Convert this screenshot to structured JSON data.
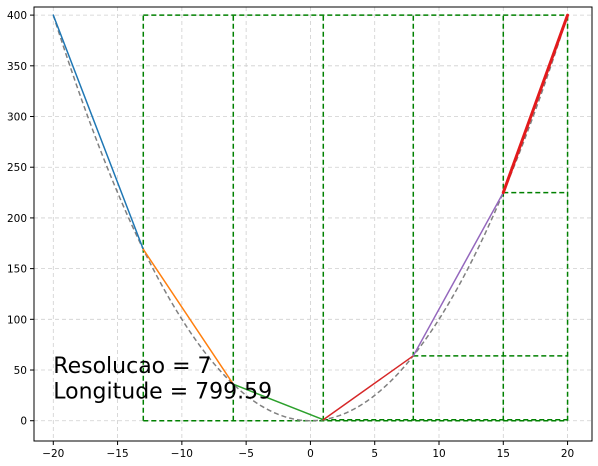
{
  "chart_data": {
    "type": "line",
    "title": "",
    "xlabel": "",
    "ylabel": "",
    "xlim": [
      -21.5,
      21.9
    ],
    "ylim": [
      -20,
      408
    ],
    "xticks": [
      -20,
      -15,
      -10,
      -5,
      0,
      5,
      10,
      15,
      20
    ],
    "yticks": [
      0,
      50,
      100,
      150,
      200,
      250,
      300,
      350,
      400
    ],
    "grid": true,
    "curve": {
      "name": "",
      "style": "dashed",
      "color": "#808080",
      "function": "y = x^2",
      "x_range": [
        -20,
        20
      ]
    },
    "segments": [
      {
        "color": "#1f77b4",
        "x": [
          -20,
          -13
        ],
        "y": [
          400,
          169
        ]
      },
      {
        "color": "#ff7f0e",
        "x": [
          -13,
          -6
        ],
        "y": [
          169,
          36
        ]
      },
      {
        "color": "#2ca02c",
        "x": [
          -6,
          1
        ],
        "y": [
          36,
          1
        ]
      },
      {
        "color": "#d62728",
        "x": [
          1,
          8
        ],
        "y": [
          1,
          64
        ]
      },
      {
        "color": "#9467bd",
        "x": [
          8,
          15
        ],
        "y": [
          64,
          225
        ]
      },
      {
        "color": "#e31a1c",
        "x": [
          15,
          20
        ],
        "y": [
          225,
          400
        ],
        "bold": true
      }
    ],
    "guides": {
      "color": "#008000",
      "style": "dashed",
      "vertical_x": [
        -13,
        -6,
        1,
        8,
        15,
        20
      ],
      "vertical_span": [
        0,
        400
      ],
      "horizontal": [
        {
          "y": 400,
          "x": [
            -13,
            20
          ]
        },
        {
          "y": 0,
          "x": [
            -13,
            20
          ]
        },
        {
          "y": 1,
          "x": [
            1,
            20
          ]
        },
        {
          "y": 64,
          "x": [
            8,
            20
          ]
        },
        {
          "y": 225,
          "x": [
            15,
            20
          ]
        }
      ]
    },
    "annotations": [
      {
        "text": "Resolucao = 7",
        "x": -20,
        "y": 47
      },
      {
        "text": "Longitude = 799.59",
        "x": -20,
        "y": 22
      }
    ]
  }
}
